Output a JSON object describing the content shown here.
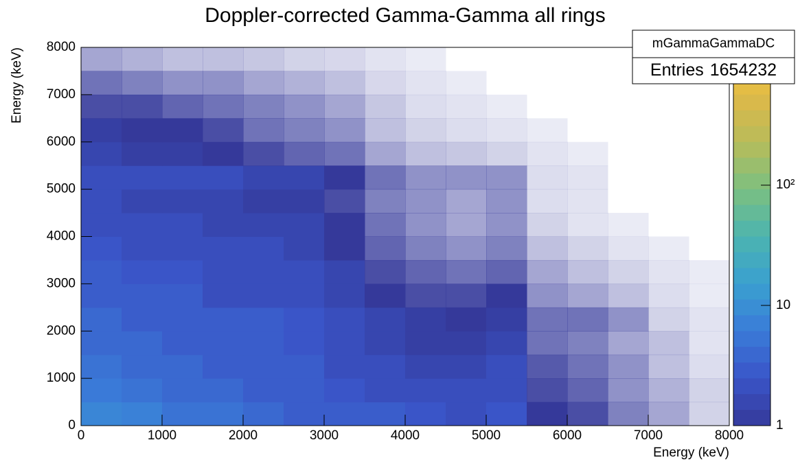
{
  "chart_data": {
    "type": "heatmap",
    "title": "Doppler-corrected Gamma-Gamma all rings",
    "x_label": "Energy (keV)",
    "y_label": "Energy (keV)",
    "x_bins": [
      0,
      500,
      1000,
      1500,
      2000,
      2500,
      3000,
      3500,
      4000,
      4500,
      5000,
      5500,
      6000,
      6500,
      7000,
      7500,
      8000
    ],
    "y_bins": [
      0,
      500,
      1000,
      1500,
      2000,
      2500,
      3000,
      3500,
      4000,
      4500,
      5000,
      5500,
      6000,
      6500,
      7000,
      7500,
      8000
    ],
    "z": [
      [
        8,
        7,
        5,
        5,
        4,
        3,
        3,
        3,
        2.5,
        2,
        2.5,
        1,
        0.8,
        0.4,
        0.2,
        0.05
      ],
      [
        6,
        5,
        4,
        4,
        3,
        3,
        2.5,
        2,
        2,
        2,
        2,
        0.8,
        0.6,
        0.3,
        0.15,
        0.05
      ],
      [
        5,
        4,
        4,
        3,
        3,
        3,
        2,
        2,
        1.5,
        1.5,
        2,
        0.7,
        0.5,
        0.3,
        0.1,
        0.03
      ],
      [
        4,
        4,
        3,
        3,
        3,
        2.5,
        2,
        1.5,
        1.2,
        1.2,
        1.5,
        0.5,
        0.4,
        0.2,
        0.1,
        0.02
      ],
      [
        4,
        3,
        3,
        3,
        3,
        2.5,
        2,
        1.5,
        1.2,
        1,
        1.2,
        0.5,
        0.5,
        0.3,
        0.05,
        0.02
      ],
      [
        3,
        3,
        3,
        2,
        2,
        2,
        1.5,
        1,
        0.8,
        0.8,
        1,
        0.3,
        0.2,
        0.1,
        0.03,
        0.01
      ],
      [
        3,
        2.5,
        2.5,
        2,
        2,
        2,
        1.5,
        0.8,
        0.6,
        0.5,
        0.6,
        0.2,
        0.1,
        0.05,
        0.02,
        0.01
      ],
      [
        2.5,
        2,
        2,
        2,
        2,
        1.5,
        1,
        0.6,
        0.4,
        0.3,
        0.4,
        0.1,
        0.05,
        0.02,
        0.01,
        null
      ],
      [
        2,
        2,
        2,
        1.5,
        1.5,
        1.5,
        1,
        0.5,
        0.3,
        0.2,
        0.3,
        0.05,
        0.02,
        0.01,
        null,
        null
      ],
      [
        2,
        1.5,
        1.5,
        1.5,
        1.2,
        1.2,
        0.8,
        0.4,
        0.3,
        0.2,
        0.3,
        0.03,
        0.02,
        null,
        null,
        null
      ],
      [
        2,
        2,
        2,
        2,
        1.5,
        1.5,
        1,
        0.5,
        0.3,
        0.3,
        0.3,
        0.03,
        0.02,
        null,
        null,
        null
      ],
      [
        1.5,
        1.2,
        1.2,
        1,
        0.8,
        0.6,
        0.5,
        0.2,
        0.1,
        0.08,
        0.05,
        0.02,
        0.01,
        null,
        null,
        null
      ],
      [
        1.2,
        1,
        1,
        0.8,
        0.5,
        0.4,
        0.3,
        0.1,
        0.05,
        0.03,
        0.02,
        0.01,
        null,
        null,
        null,
        null
      ],
      [
        0.8,
        0.8,
        0.6,
        0.5,
        0.4,
        0.3,
        0.2,
        0.08,
        0.03,
        0.02,
        0.01,
        null,
        null,
        null,
        null,
        null
      ],
      [
        0.5,
        0.4,
        0.3,
        0.3,
        0.2,
        0.15,
        0.1,
        0.04,
        0.02,
        0.01,
        null,
        null,
        null,
        null,
        null,
        null
      ],
      [
        0.2,
        0.15,
        0.1,
        0.1,
        0.08,
        0.05,
        0.04,
        0.02,
        0.01,
        null,
        null,
        null,
        null,
        null,
        null,
        null
      ]
    ],
    "xlim": [
      0,
      8000
    ],
    "ylim": [
      0,
      8000
    ],
    "xticks": [
      0,
      1000,
      2000,
      3000,
      4000,
      5000,
      6000,
      7000,
      8000
    ],
    "yticks": [
      0,
      1000,
      2000,
      3000,
      4000,
      5000,
      6000,
      7000,
      8000
    ],
    "zlim": [
      1,
      1400
    ],
    "zlog": true,
    "zticks": [
      1,
      10,
      {
        "value": 100,
        "label": "10²"
      }
    ],
    "colorscale": [
      "#35399a",
      "#3a55c8",
      "#3a7bd8",
      "#3aa0d0",
      "#4cb4b0",
      "#7cc080",
      "#b8bc5a",
      "#e0b848",
      "#f5d838"
    ],
    "stats": {
      "name": "mGammaGammaDC",
      "entries_label": "Entries",
      "entries": 1654232
    }
  }
}
